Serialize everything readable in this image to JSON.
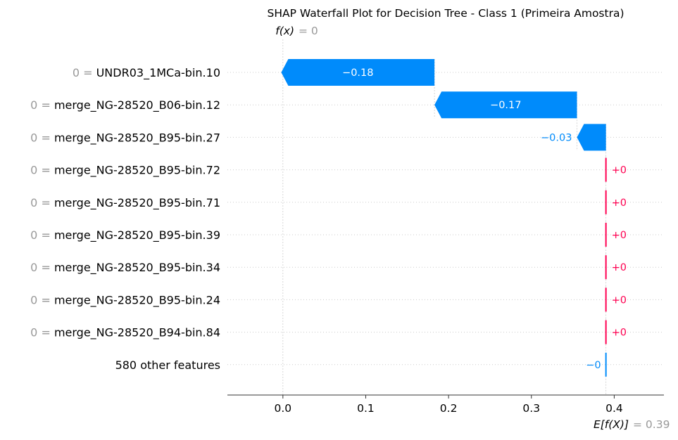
{
  "chart_data": {
    "type": "waterfall",
    "title": "SHAP Waterfall Plot for Decision Tree - Class 1 (Primeira Amostra)",
    "fx_label": "f(x)",
    "fx_value_text": "= 0",
    "fx_value": 0.0,
    "efx_label": "E[f(X)]",
    "efx_value_text": "= 0.39",
    "base_value": 0.39,
    "xlim": [
      -0.067,
      0.46
    ],
    "x_ticks": [
      0.0,
      0.1,
      0.2,
      0.3,
      0.4
    ],
    "x_tick_labels": [
      "0.0",
      "0.1",
      "0.2",
      "0.3",
      "0.4"
    ],
    "features": [
      {
        "value_text": "0 =",
        "name": "UNDR03_1MCa-bin.10",
        "shap": -0.185,
        "label": "−0.18"
      },
      {
        "value_text": "0 =",
        "name": "merge_NG-28520_B06-bin.12",
        "shap": -0.172,
        "label": "−0.17"
      },
      {
        "value_text": "0 =",
        "name": "merge_NG-28520_B95-bin.27",
        "shap": -0.035,
        "label": "−0.03"
      },
      {
        "value_text": "0 =",
        "name": "merge_NG-28520_B95-bin.72",
        "shap": 0.0,
        "label": "+0"
      },
      {
        "value_text": "0 =",
        "name": "merge_NG-28520_B95-bin.71",
        "shap": 0.0,
        "label": "+0"
      },
      {
        "value_text": "0 =",
        "name": "merge_NG-28520_B95-bin.39",
        "shap": 0.0,
        "label": "+0"
      },
      {
        "value_text": "0 =",
        "name": "merge_NG-28520_B95-bin.34",
        "shap": 0.0,
        "label": "+0"
      },
      {
        "value_text": "0 =",
        "name": "merge_NG-28520_B95-bin.24",
        "shap": 0.0,
        "label": "+0"
      },
      {
        "value_text": "0 =",
        "name": "merge_NG-28520_B94-bin.84",
        "shap": 0.0,
        "label": "+0"
      },
      {
        "value_text": "",
        "name": "580 other features",
        "shap": -0.0,
        "label": "−0"
      }
    ],
    "colors": {
      "negative": "#008bfb",
      "positive": "#ff0051",
      "text": "#000000",
      "muted": "#999999",
      "axis": "#333333",
      "grid": "#cccccc"
    }
  }
}
